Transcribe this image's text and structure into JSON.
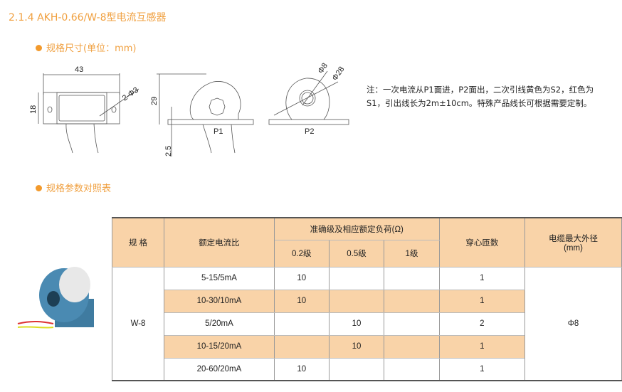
{
  "title": "2.1.4 AKH-0.66/W-8型电流互感器",
  "section1": "规格尺寸(单位：mm)",
  "section2": "规格参数对照表",
  "drawing": {
    "width": "43",
    "height": "18",
    "hole": "2-Φ3",
    "h29": "29",
    "h25": "2.5",
    "p1": "P1",
    "p2": "P2",
    "d8": "Φ8",
    "d28": "Φ28"
  },
  "note": "注：一次电流从P1面进，P2面出，二次引线黄色为S2，红色为S1，引出线长为2m±10cm。特殊产品线长可根据需要定制。",
  "table": {
    "headers": {
      "spec": "规 格",
      "ratio": "额定电流比",
      "accuracy": "准确级及相应额定负荷(Ω)",
      "c02": "0.2级",
      "c05": "0.5级",
      "c1": "1级",
      "turns": "穿心匝数",
      "cable": "电缆最大外径(mm)"
    },
    "spec": "W-8",
    "cable": "Φ8",
    "rows": [
      {
        "ratio": "5-15/5mA",
        "c02": "10",
        "c05": "",
        "c1": "",
        "turns": "1"
      },
      {
        "ratio": "10-30/10mA",
        "c02": "10",
        "c05": "",
        "c1": "",
        "turns": "1"
      },
      {
        "ratio": "5/20mA",
        "c02": "",
        "c05": "10",
        "c1": "",
        "turns": "2"
      },
      {
        "ratio": "10-15/20mA",
        "c02": "",
        "c05": "10",
        "c1": "",
        "turns": "1"
      },
      {
        "ratio": "20-60/20mA",
        "c02": "10",
        "c05": "",
        "c1": "",
        "turns": "1"
      }
    ]
  }
}
